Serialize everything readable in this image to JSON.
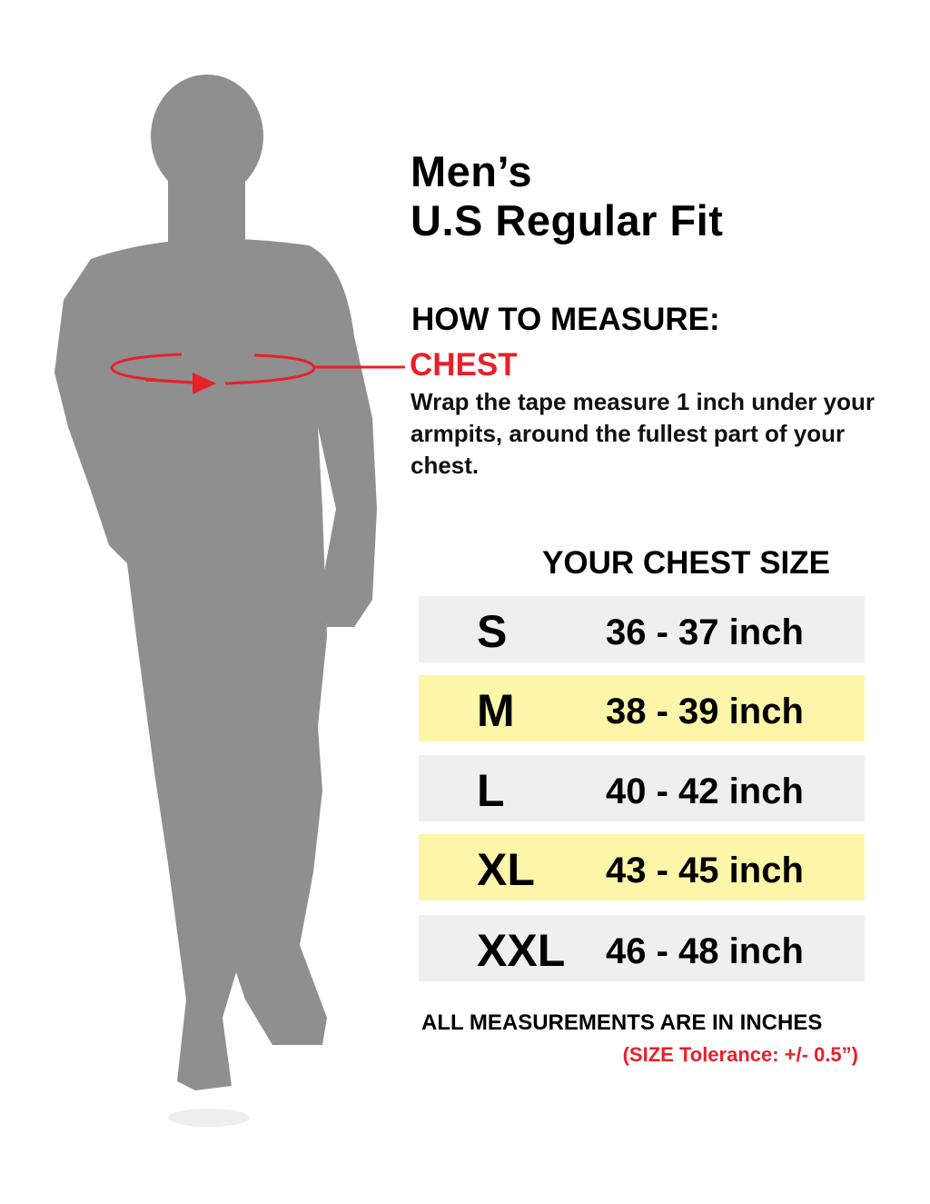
{
  "title": {
    "line1": "Men’s",
    "line2": "U.S Regular Fit"
  },
  "how_to_measure": {
    "heading": "HOW TO MEASURE:",
    "label": "CHEST",
    "description": "Wrap the tape measure 1 inch under your armpits, around the fullest part of your chest."
  },
  "table": {
    "heading": "YOUR CHEST SIZE",
    "rows": [
      {
        "size": "S",
        "range": "36 - 37 inch"
      },
      {
        "size": "M",
        "range": "38 - 39 inch"
      },
      {
        "size": "L",
        "range": "40 - 42 inch"
      },
      {
        "size": "XL",
        "range": "43 - 45 inch"
      },
      {
        "size": "XXL",
        "range": "46 - 48 inch"
      }
    ]
  },
  "footer": {
    "note": "ALL MEASUREMENTS ARE IN INCHES",
    "tolerance": "(SIZE Tolerance: +/- 0.5”)"
  },
  "colors": {
    "accent": "#e8202a",
    "row_gray": "#efefef",
    "row_yellow": "#fdf6a8",
    "silhouette": "#8f8f8f"
  }
}
